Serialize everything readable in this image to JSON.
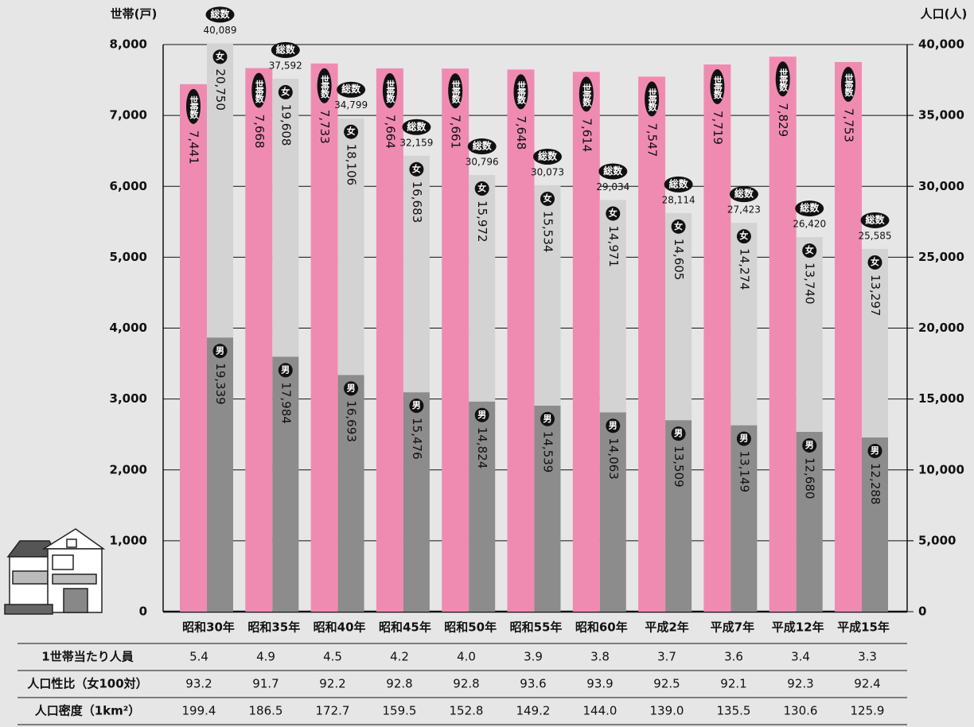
{
  "chart_data": {
    "type": "bar",
    "stacked": true,
    "grid": true,
    "y_label": "世帯(戸)",
    "y2_label": "人口(人)",
    "categories": [
      "昭和30年",
      "昭和35年",
      "昭和40年",
      "昭和45年",
      "昭和50年",
      "昭和55年",
      "昭和60年",
      "平成2年",
      "平成7年",
      "平成12年",
      "平成15年"
    ],
    "series": [
      {
        "name": "世帯数",
        "color": "#ef8bb1",
        "values": [
          7441,
          7668,
          7733,
          7664,
          7661,
          7648,
          7614,
          7547,
          7719,
          7829,
          7753
        ],
        "value_labels": [
          "7,441",
          "7,668",
          "7,733",
          "7,664",
          "7,661",
          "7,648",
          "7,614",
          "7,547",
          "7,719",
          "7,829",
          "7,753"
        ]
      },
      {
        "name": "男",
        "color": "#8c8c8c",
        "axis": "y2",
        "values": [
          19339,
          17984,
          16693,
          15476,
          14824,
          14539,
          14063,
          13509,
          13149,
          12680,
          12288
        ],
        "value_labels": [
          "19,339",
          "17,984",
          "16,693",
          "15,476",
          "14,824",
          "14,539",
          "14,063",
          "13,509",
          "13,149",
          "12,680",
          "12,288"
        ]
      },
      {
        "name": "女",
        "color": "#d3d3d3",
        "axis": "y2",
        "values": [
          20750,
          19608,
          18106,
          16683,
          15972,
          15534,
          14971,
          14605,
          14274,
          13740,
          13297
        ],
        "value_labels": [
          "20,750",
          "19,608",
          "18,106",
          "16,683",
          "15,972",
          "15,534",
          "14,971",
          "14,605",
          "14,274",
          "13,740",
          "13,297"
        ]
      }
    ],
    "totals": {
      "name": "総数",
      "values": [
        40089,
        37592,
        34799,
        32159,
        30796,
        30073,
        29034,
        28114,
        27423,
        26420,
        25585
      ],
      "value_labels": [
        "40,089",
        "37,592",
        "34,799",
        "32,159",
        "30,796",
        "30,073",
        "29,034",
        "28,114",
        "27,423",
        "26,420",
        "25,585"
      ]
    },
    "ylim": [
      0,
      8000
    ],
    "yticks": [
      0,
      {
        "value": 1000,
        "label": "1,000"
      },
      {
        "value": 2000,
        "label": "2,000"
      },
      {
        "value": 3000,
        "label": "3,000"
      },
      {
        "value": 4000,
        "label": "4,000"
      },
      {
        "value": 5000,
        "label": "5,000"
      },
      {
        "value": 6000,
        "label": "6,000"
      },
      {
        "value": 7000,
        "label": "7,000"
      },
      {
        "value": 8000,
        "label": "8,000"
      }
    ],
    "y2lim": [
      0,
      40000
    ],
    "y2ticks": [
      0,
      {
        "value": 5000,
        "label": "5,000"
      },
      {
        "value": 10000,
        "label": "10,000"
      },
      {
        "value": 15000,
        "label": "15,000"
      },
      {
        "value": 20000,
        "label": "20,000"
      },
      {
        "value": 25000,
        "label": "25,000"
      },
      {
        "value": 30000,
        "label": "30,000"
      },
      {
        "value": 35000,
        "label": "35,000"
      },
      {
        "value": 40000,
        "label": "40,000"
      }
    ]
  },
  "table": {
    "rows": [
      {
        "label": "1世帯当たり人員",
        "values": [
          "5.4",
          "4.9",
          "4.5",
          "4.2",
          "4.0",
          "3.9",
          "3.8",
          "3.7",
          "3.6",
          "3.4",
          "3.3"
        ]
      },
      {
        "label": "人口性比（女100対）",
        "values": [
          "93.2",
          "91.7",
          "92.2",
          "92.8",
          "92.8",
          "93.6",
          "93.9",
          "92.5",
          "92.1",
          "92.3",
          "92.4"
        ]
      },
      {
        "label": "人口密度（1km²）",
        "values": [
          "199.4",
          "186.5",
          "172.7",
          "159.5",
          "152.8",
          "149.2",
          "144.0",
          "139.0",
          "135.5",
          "130.6",
          "125.9"
        ]
      }
    ]
  }
}
